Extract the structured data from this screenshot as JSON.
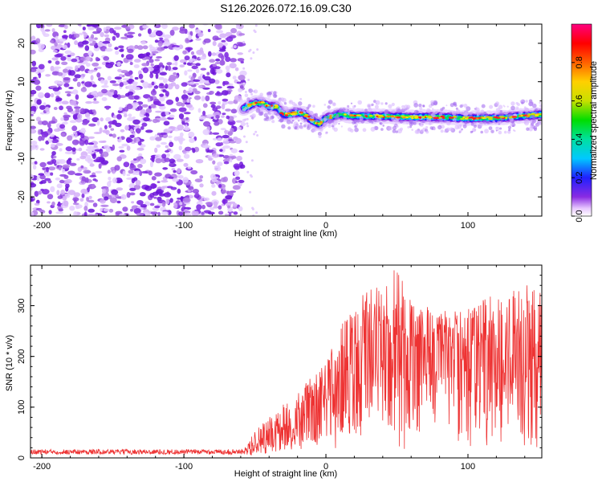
{
  "title": "S126.2026.072.16.09.C30",
  "colors": {
    "signal": "#ee3333",
    "noise_purple": "#8a2be2",
    "axis": "#000000"
  },
  "chart_data": [
    {
      "type": "heatmap",
      "name": "spectrogram",
      "xlabel": "Height of straight line (km)",
      "ylabel": "Frequency (Hz)",
      "xlim": [
        -208,
        152
      ],
      "ylim": [
        -25,
        25
      ],
      "xticks": [
        -200,
        -100,
        0,
        100
      ],
      "xtick_labels": [
        "-200",
        "-100",
        "0",
        "100"
      ],
      "yticks": [
        -20,
        -10,
        0,
        10,
        20
      ],
      "ytick_labels": [
        "-20",
        "-10",
        "0",
        "10",
        "20"
      ],
      "noise_region_x": [
        -208,
        -58
      ],
      "signal_track": {
        "x": [
          -58,
          -50,
          -45,
          -40,
          -35,
          -30,
          -25,
          -20,
          -15,
          -10,
          -5,
          0,
          10,
          20,
          40,
          60,
          80,
          100,
          120,
          152
        ],
        "frequency_hz": [
          3,
          4.5,
          4.5,
          3.5,
          3.5,
          1.5,
          1.5,
          2,
          1.5,
          0,
          -1,
          0.5,
          1.5,
          1,
          1,
          0.8,
          0.8,
          0.5,
          0.5,
          1.5
        ]
      }
    },
    {
      "type": "colorbar",
      "name": "amplitude-colorbar",
      "label": "Normalized spectral amplitude",
      "range": [
        0,
        1
      ],
      "ticks": [
        0.0,
        0.2,
        0.4,
        0.6,
        0.8
      ],
      "tick_labels": [
        "0.0",
        "0.2",
        "0.4",
        "0.6",
        "0.8"
      ]
    },
    {
      "type": "line",
      "name": "snr",
      "xlabel": "Height of straight line (km)",
      "ylabel": "SNR (10 * v/v)",
      "xlim": [
        -208,
        152
      ],
      "ylim": [
        0,
        380
      ],
      "xticks": [
        -200,
        -100,
        0,
        100
      ],
      "xtick_labels": [
        "-200",
        "-100",
        "0",
        "100"
      ],
      "yticks": [
        0,
        100,
        200,
        300
      ],
      "ytick_labels": [
        "0",
        "100",
        "200",
        "300"
      ],
      "envelope": {
        "x": [
          -208,
          -58,
          -40,
          -20,
          0,
          10,
          20,
          30,
          40,
          50,
          60,
          80,
          100,
          120,
          140,
          152
        ],
        "mean": [
          12,
          12,
          40,
          70,
          130,
          170,
          200,
          230,
          240,
          250,
          230,
          220,
          210,
          190,
          180,
          190
        ],
        "max": [
          25,
          30,
          80,
          130,
          190,
          260,
          300,
          340,
          350,
          380,
          320,
          290,
          300,
          330,
          340,
          340
        ]
      }
    }
  ]
}
